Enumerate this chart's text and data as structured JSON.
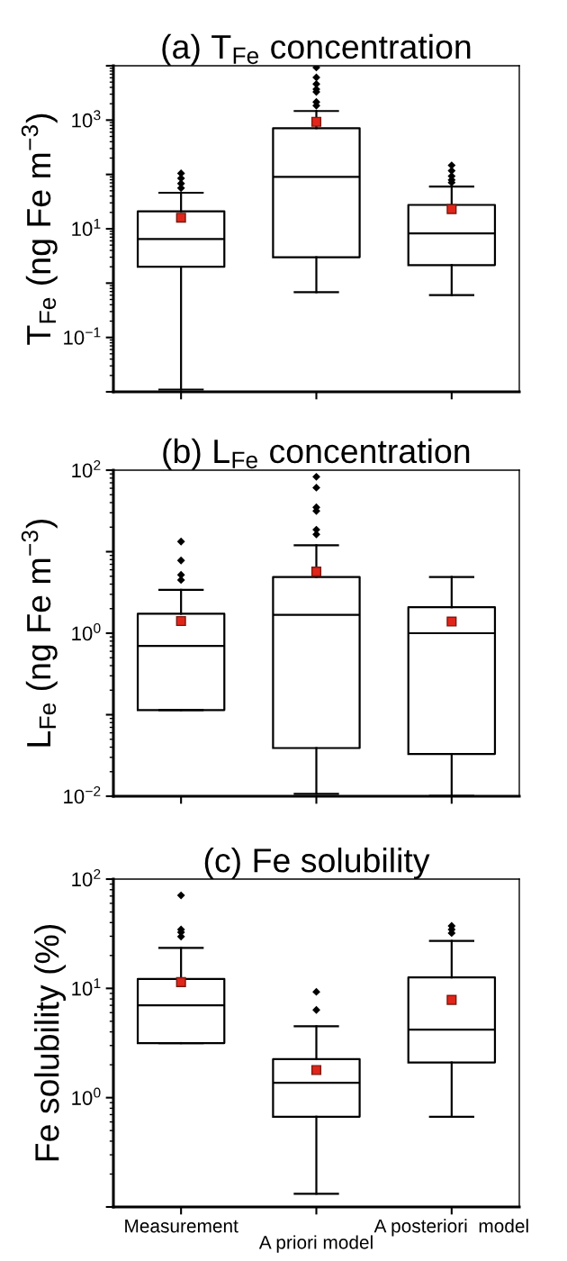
{
  "chart_data": [
    {
      "type": "box",
      "title": "(a) T$_{Fe}$ concentration",
      "ylabel": "T$_{Fe}$ (ng Fe m$^{−3}$)",
      "categories": [
        null,
        null,
        null
      ],
      "log": "y",
      "ylim": [
        0.01,
        10000
      ],
      "yticks": [
        {
          "value": 0.01,
          "label": null
        },
        {
          "value": 0.1,
          "label": "10$^{−1}$"
        },
        {
          "value": 1,
          "label": null
        },
        {
          "value": 10,
          "label": "10$^{1}$"
        },
        {
          "value": 100,
          "label": null
        },
        {
          "value": 1000,
          "label": "10$^{3}$"
        },
        {
          "value": 10000,
          "label": null
        }
      ],
      "tick_labels": "y",
      "grid": false,
      "boxes": [
        {
          "low": 0.011,
          "q1": 2.0,
          "median": 6.5,
          "q3": 21,
          "high": 46,
          "mean": 16,
          "outliers": [
            105,
            85,
            68,
            56
          ]
        },
        {
          "low": 0.68,
          "q1": 3.0,
          "median": 90,
          "q3": 710,
          "high": 1470,
          "mean": 930,
          "outliers": [
            9300,
            6100,
            4600,
            3700,
            3300,
            2150,
            1850
          ]
        },
        {
          "low": 0.6,
          "q1": 2.15,
          "median": 8.2,
          "q3": 27.5,
          "high": 60,
          "mean": 23,
          "outliers": [
            147,
            117,
            93,
            79,
            71
          ]
        }
      ]
    },
    {
      "type": "box",
      "title": "(b) L$_{Fe}$ concentration",
      "ylabel": "L$_{Fe}$ (ng Fe m$^{−3}$)",
      "categories": [
        null,
        null,
        null
      ],
      "log": "y",
      "ylim": [
        0.01,
        100
      ],
      "yticks": [
        {
          "value": 0.01,
          "label": "10$^{−2}$"
        },
        {
          "value": 0.1,
          "label": null
        },
        {
          "value": 1,
          "label": "10$^{0}$"
        },
        {
          "value": 10,
          "label": null
        },
        {
          "value": 100,
          "label": "10$^{2}$"
        }
      ],
      "tick_labels": "y",
      "grid": false,
      "boxes": [
        {
          "low": 0.114,
          "q1": 0.114,
          "median": 0.7,
          "q3": 1.73,
          "high": 3.4,
          "mean": 1.41,
          "outliers": [
            13.3,
            7.8,
            5.2,
            4.5
          ]
        },
        {
          "low": 0.0107,
          "q1": 0.039,
          "median": 1.68,
          "q3": 4.9,
          "high": 12,
          "mean": 5.7,
          "outliers": [
            83,
            61,
            35,
            31.6,
            18.6,
            16.3
          ]
        },
        {
          "low": 0.0101,
          "q1": 0.033,
          "median": 1.0,
          "q3": 2.08,
          "high": 4.9,
          "mean": 1.39
        }
      ]
    },
    {
      "type": "box",
      "title": "(c) Fe solubility",
      "ylabel": "Fe solubility (%)",
      "categories": [
        "Measurement",
        "A priori model",
        "A posteriori  model"
      ],
      "log": "y",
      "ylim": [
        0.1,
        100
      ],
      "yticks": [
        {
          "value": 0.1,
          "label": null
        },
        {
          "value": 1,
          "label": "10$^{0}$"
        },
        {
          "value": 10,
          "label": "10$^{1}$"
        },
        {
          "value": 100,
          "label": "10$^{2}$"
        }
      ],
      "grid": false,
      "boxes": [
        {
          "low": 3.16,
          "q1": 3.16,
          "median": 7.0,
          "q3": 12.2,
          "high": 23.5,
          "mean": 11.4,
          "outliers": [
            71,
            34.6,
            32.6,
            29.8
          ]
        },
        {
          "low": 0.132,
          "q1": 0.67,
          "median": 1.37,
          "q3": 2.25,
          "high": 4.5,
          "mean": 1.79,
          "outliers": [
            9.3,
            6.35
          ]
        },
        {
          "low": 0.67,
          "q1": 2.1,
          "median": 4.2,
          "q3": 12.6,
          "high": 27.2,
          "mean": 7.85,
          "outliers": [
            37.3,
            34.6,
            32.1
          ]
        }
      ]
    }
  ]
}
